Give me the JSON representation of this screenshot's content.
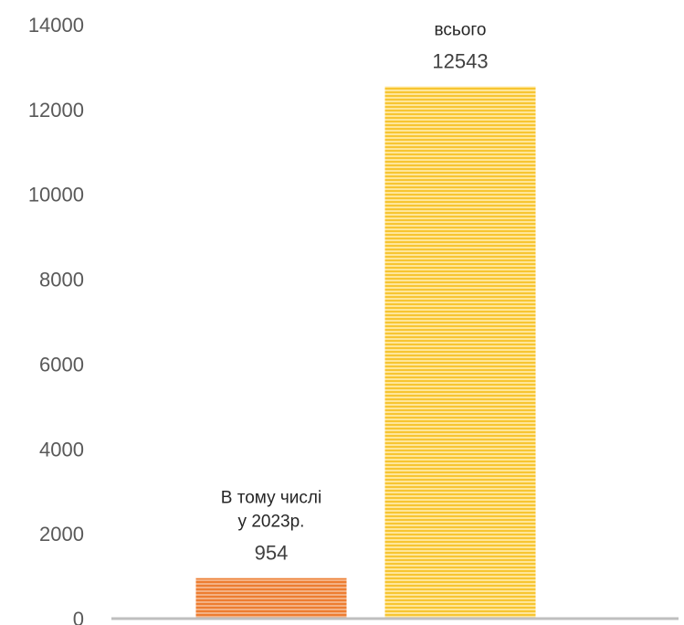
{
  "chart_data": {
    "type": "bar",
    "categories": [
      "В тому числі у 2023р.",
      "всього"
    ],
    "category_label_lines": [
      [
        "В тому числі",
        "у 2023р."
      ],
      [
        "всього"
      ]
    ],
    "values": [
      954,
      12543
    ],
    "data_labels": [
      "954",
      "12543"
    ],
    "y_ticks": [
      "0",
      "2000",
      "4000",
      "6000",
      "8000",
      "10000",
      "12000",
      "14000"
    ],
    "ylim": [
      0,
      14000
    ],
    "bar_colors": [
      "#ED7D31",
      "#FFC000"
    ],
    "bar_pattern": "horizontal-stripes",
    "axis_color": "#BFBFBF",
    "grid": false,
    "title": "",
    "xlabel": "",
    "ylabel": ""
  }
}
